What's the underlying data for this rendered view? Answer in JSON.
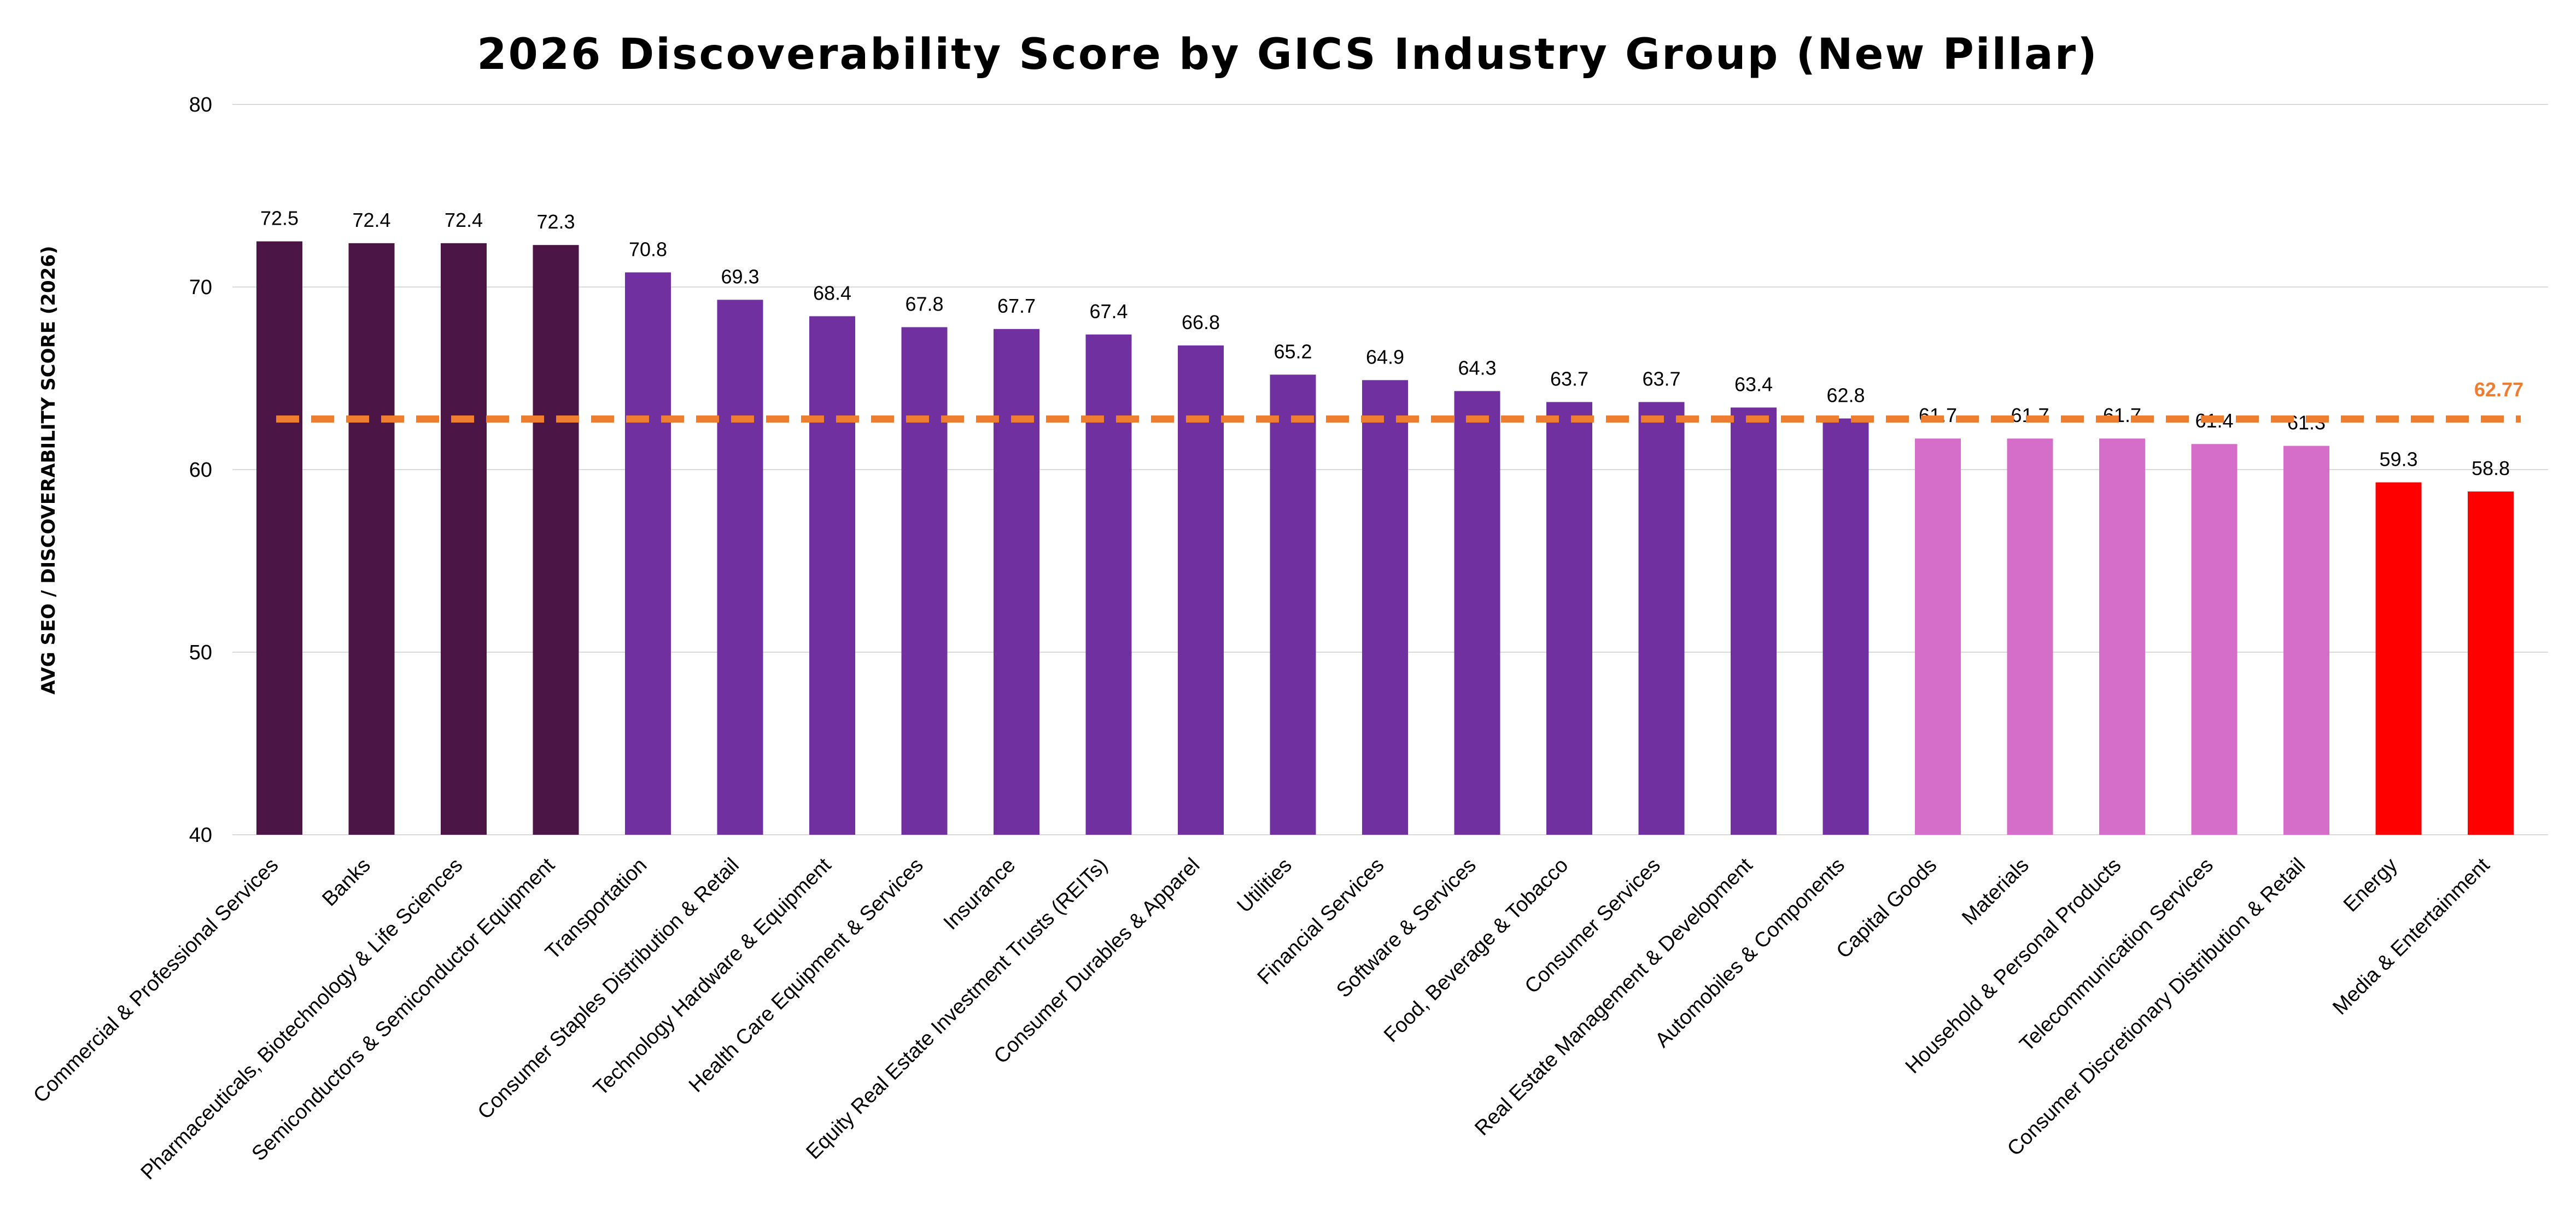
{
  "chart_data": {
    "type": "bar",
    "title": "2026 Discoverability Score by GICS Industry Group (New Pillar)",
    "ylabel": "AVG SEO / DISCOVERABILITY SCORE (2026)",
    "xlabel": "",
    "ylim": [
      40,
      80
    ],
    "yticks": [
      40,
      50,
      60,
      70,
      80
    ],
    "grid": true,
    "categories": [
      "Commercial & Professional Services",
      "Banks",
      "Pharmaceuticals, Biotechnology & Life Sciences",
      "Semiconductors & Semiconductor Equipment",
      "Transportation",
      "Consumer Staples Distribution & Retail",
      "Technology Hardware & Equipment",
      "Health Care Equipment & Services",
      "Insurance",
      "Equity Real Estate Investment Trusts (REITs)",
      "Consumer Durables & Apparel",
      "Utilities",
      "Financial Services",
      "Software & Services",
      "Food, Beverage & Tobacco",
      "Consumer Services",
      "Real Estate Management & Development",
      "Automobiles & Components",
      "Capital Goods",
      "Materials",
      "Household & Personal Products",
      "Telecommunication Services",
      "Consumer Discretionary Distribution & Retail",
      "Energy",
      "Media & Entertainment"
    ],
    "values": [
      72.5,
      72.4,
      72.4,
      72.3,
      70.8,
      69.3,
      68.4,
      67.8,
      67.7,
      67.4,
      66.8,
      65.2,
      64.9,
      64.3,
      63.7,
      63.7,
      63.4,
      62.8,
      61.7,
      61.7,
      61.7,
      61.4,
      61.3,
      59.3,
      58.8
    ],
    "value_labels": [
      "72.5",
      "72.4",
      "72.4",
      "72.3",
      "70.8",
      "69.3",
      "68.4",
      "67.8",
      "67.7",
      "67.4",
      "66.8",
      "65.2",
      "64.9",
      "64.3",
      "63.7",
      "63.7",
      "63.4",
      "62.8",
      "61.7",
      "61.7",
      "61.7",
      "61.4",
      "61.3",
      "59.3",
      "58.8"
    ],
    "bar_colors": [
      "#4b1545",
      "#4b1545",
      "#4b1545",
      "#4b1545",
      "#7030a0",
      "#7030a0",
      "#7030a0",
      "#7030a0",
      "#7030a0",
      "#7030a0",
      "#7030a0",
      "#7030a0",
      "#7030a0",
      "#7030a0",
      "#7030a0",
      "#7030a0",
      "#7030a0",
      "#7030a0",
      "#d56ec9",
      "#d56ec9",
      "#d56ec9",
      "#d56ec9",
      "#d56ec9",
      "#ff0000",
      "#ff0000"
    ],
    "reference_line": {
      "value": 62.77,
      "label": "62.77",
      "color": "#ed7d31",
      "style": "dashed"
    }
  }
}
